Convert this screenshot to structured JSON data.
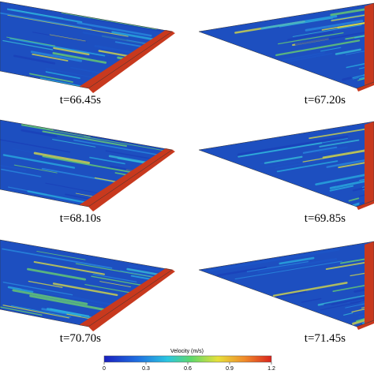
{
  "panels": [
    {
      "label": "t=66.45s"
    },
    {
      "label": "t=67.20s"
    },
    {
      "label": "t=68.10s"
    },
    {
      "label": "t=69.85s"
    },
    {
      "label": "t=70.70s"
    },
    {
      "label": "t=71.45s"
    }
  ],
  "colorbar": {
    "title": "Velocity (m/s)",
    "range": [
      0,
      1.2
    ],
    "ticks": [
      0,
      0.3,
      0.6,
      0.9,
      1.2
    ]
  }
}
